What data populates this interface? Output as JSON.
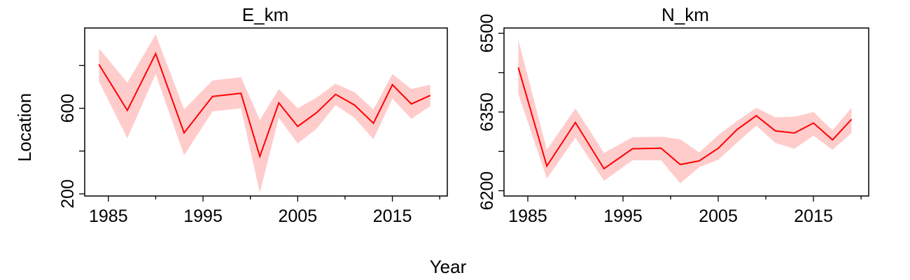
{
  "figure": {
    "xlabel": "Year",
    "ylabel": "Location"
  },
  "colors": {
    "line": "#ff0000",
    "band": "#ffcccc",
    "frame": "#000000"
  },
  "chart_data": [
    {
      "type": "line",
      "title": "E_km",
      "xlabel": "Year",
      "ylabel": "Location",
      "xlim": [
        1982.5,
        2020.8
      ],
      "ylim": [
        190,
        975
      ],
      "xticks": [
        1985,
        1995,
        2005,
        2015
      ],
      "xtick_labels": [
        "1985",
        "1995",
        "2005",
        "2015"
      ],
      "xticks_minor": [
        1990,
        2000,
        2010,
        2020
      ],
      "yticks": [
        200,
        400,
        600,
        800
      ],
      "ytick_labels": [
        "200",
        "",
        "600",
        ""
      ],
      "series": [
        {
          "x": [
            1984,
            1987,
            1990,
            1993,
            1996,
            1999,
            2001,
            2003,
            2005,
            2007,
            2009,
            2011,
            2013,
            2015,
            2017,
            2019
          ],
          "y": [
            805,
            590,
            855,
            485,
            655,
            670,
            375,
            625,
            515,
            580,
            665,
            615,
            530,
            710,
            620,
            660
          ],
          "lower": [
            725,
            460,
            760,
            380,
            585,
            600,
            205,
            555,
            435,
            505,
            615,
            555,
            455,
            645,
            550,
            610
          ],
          "upper": [
            880,
            720,
            945,
            595,
            730,
            745,
            545,
            690,
            600,
            650,
            715,
            675,
            595,
            760,
            690,
            710
          ]
        }
      ]
    },
    {
      "type": "line",
      "title": "N_km",
      "xlabel": "Year",
      "ylabel": "",
      "xlim": [
        1982.5,
        2020.8
      ],
      "ylim": [
        6190,
        6510
      ],
      "xticks": [
        1985,
        1995,
        2005,
        2015
      ],
      "xtick_labels": [
        "1985",
        "1995",
        "2005",
        "2015"
      ],
      "xticks_minor": [
        1990,
        2000,
        2010,
        2020
      ],
      "yticks": [
        6200,
        6275,
        6350,
        6425,
        6500
      ],
      "ytick_labels": [
        "6200",
        "",
        "6350",
        "",
        "6500"
      ],
      "series": [
        {
          "x": [
            1984,
            1987,
            1990,
            1993,
            1996,
            1999,
            2001,
            2003,
            2005,
            2007,
            2009,
            2011,
            2013,
            2015,
            2017,
            2019
          ],
          "y": [
            6435,
            6247,
            6330,
            6242,
            6280,
            6281,
            6250,
            6257,
            6281,
            6317,
            6343,
            6314,
            6310,
            6329,
            6297,
            6336
          ],
          "lower": [
            6385,
            6223,
            6301,
            6219,
            6258,
            6258,
            6214,
            6245,
            6259,
            6292,
            6324,
            6291,
            6280,
            6305,
            6278,
            6310
          ],
          "upper": [
            6488,
            6278,
            6357,
            6272,
            6302,
            6303,
            6298,
            6273,
            6306,
            6333,
            6358,
            6340,
            6341,
            6350,
            6315,
            6358
          ]
        }
      ]
    }
  ]
}
